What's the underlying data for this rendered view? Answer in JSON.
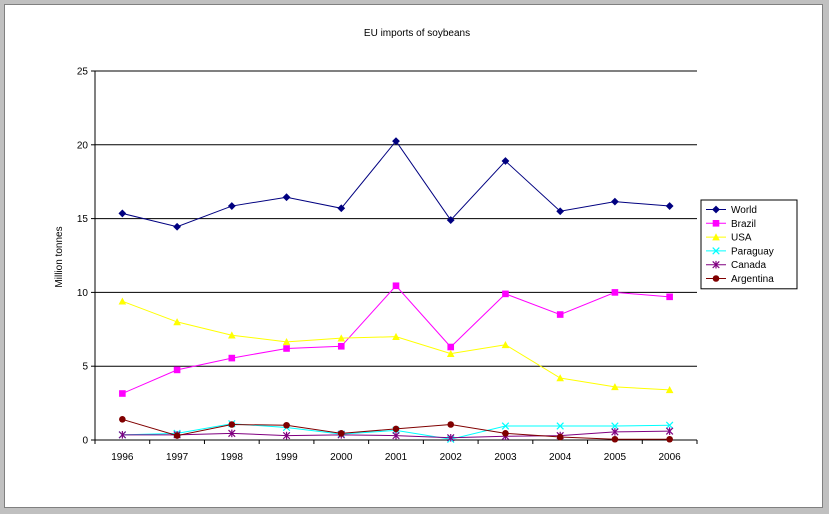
{
  "chart_data": {
    "type": "line",
    "title": "EU imports of soybeans",
    "xlabel": "",
    "ylabel": "Million tonnes",
    "categories": [
      "1996",
      "1997",
      "1998",
      "1999",
      "2000",
      "2001",
      "2002",
      "2003",
      "2004",
      "2005",
      "2006"
    ],
    "ylim": [
      0,
      25
    ],
    "yticks": [
      0,
      5,
      10,
      15,
      20,
      25
    ],
    "grid": "horizontal",
    "legend_position": "right",
    "series": [
      {
        "name": "World",
        "color": "#000080",
        "marker": "diamond",
        "values": [
          15.35,
          14.45,
          15.85,
          16.45,
          15.7,
          20.25,
          14.9,
          18.9,
          15.5,
          16.15,
          15.85
        ]
      },
      {
        "name": "Brazil",
        "color": "#ff00ff",
        "marker": "square",
        "values": [
          3.15,
          4.75,
          5.55,
          6.2,
          6.35,
          10.45,
          6.3,
          9.9,
          8.5,
          10.0,
          9.7
        ]
      },
      {
        "name": "USA",
        "color": "#ffff00",
        "marker": "triangle",
        "values": [
          9.4,
          8.0,
          7.1,
          6.65,
          6.9,
          7.0,
          5.85,
          6.45,
          4.2,
          3.6,
          3.4
        ]
      },
      {
        "name": "Paraguay",
        "color": "#00ffff",
        "marker": "x",
        "values": [
          0.35,
          0.45,
          1.1,
          0.85,
          0.4,
          0.65,
          0.05,
          0.95,
          0.95,
          0.95,
          1.0
        ]
      },
      {
        "name": "Canada",
        "color": "#800080",
        "marker": "star",
        "values": [
          0.35,
          0.35,
          0.45,
          0.3,
          0.35,
          0.3,
          0.15,
          0.25,
          0.3,
          0.55,
          0.6
        ]
      },
      {
        "name": "Argentina",
        "color": "#800000",
        "marker": "circle",
        "values": [
          1.4,
          0.3,
          1.05,
          1.0,
          0.45,
          0.75,
          1.05,
          0.45,
          0.2,
          0.05,
          0.05
        ]
      }
    ]
  }
}
